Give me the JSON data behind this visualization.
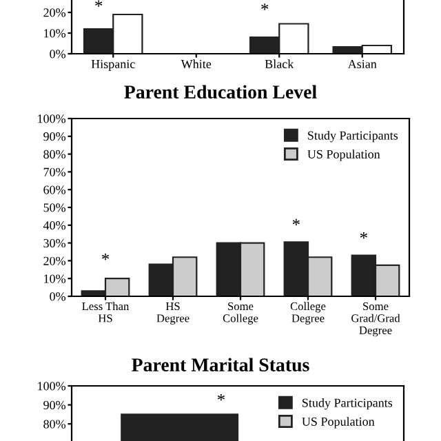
{
  "chart_data": [
    {
      "type": "bar",
      "categories": [
        "Hispanic",
        "White",
        "Black",
        "Asian"
      ],
      "series": [
        {
          "color": "#222222",
          "values": [
            12,
            null,
            8,
            3.3
          ]
        },
        {
          "color": "#ffffff",
          "values": [
            19,
            null,
            14.5,
            4
          ]
        }
      ],
      "ylim": [
        0,
        26
      ],
      "yticks": [
        {
          "value": 0,
          "label": "0%"
        },
        {
          "value": 10,
          "label": "10%"
        },
        {
          "value": 20,
          "label": "20%"
        }
      ],
      "annotations": [
        "*",
        "*"
      ],
      "grid": false,
      "legend": false
    },
    {
      "type": "bar",
      "title": "Parent Education Level",
      "categories": [
        "Less Than HS",
        "HS Degree",
        "Some College",
        "College Degree",
        "Some Grad/Grad Degree"
      ],
      "series": [
        {
          "name": "Study Participants",
          "color": "#222222",
          "values": [
            3,
            18,
            30,
            30.5,
            23
          ]
        },
        {
          "name": "US Population",
          "color": "#cccccc",
          "values": [
            10,
            22,
            30,
            22,
            17.5
          ]
        }
      ],
      "ylim": [
        0,
        100
      ],
      "yticks": [
        {
          "value": 0,
          "label": "0%"
        },
        {
          "value": 10,
          "label": "10%"
        },
        {
          "value": 20,
          "label": "20%"
        },
        {
          "value": 30,
          "label": "30%"
        },
        {
          "value": 40,
          "label": "40%"
        },
        {
          "value": 50,
          "label": "50%"
        },
        {
          "value": 60,
          "label": "60%"
        },
        {
          "value": 70,
          "label": "70%"
        },
        {
          "value": 80,
          "label": "80%"
        },
        {
          "value": 90,
          "label": "90%"
        },
        {
          "value": 100,
          "label": "100%"
        }
      ],
      "annotations": [
        "*",
        "*",
        "*"
      ],
      "grid": false,
      "legend": "top right"
    },
    {
      "type": "bar",
      "title": "Parent Marital Status",
      "categories": [
        null
      ],
      "series": [
        {
          "name": "Study Participants",
          "color": "#222222",
          "values": [
            85
          ]
        },
        {
          "name": "US Population",
          "color": "#cccccc",
          "values": [
            null
          ]
        }
      ],
      "ylim": [
        71,
        100
      ],
      "yticks": [
        {
          "value": 80,
          "label": "80%"
        },
        {
          "value": 90,
          "label": "90%"
        },
        {
          "value": 100,
          "label": "100%"
        }
      ],
      "annotations": [
        "*"
      ],
      "grid": false,
      "legend": "top right",
      "tick_labels": "y"
    }
  ]
}
